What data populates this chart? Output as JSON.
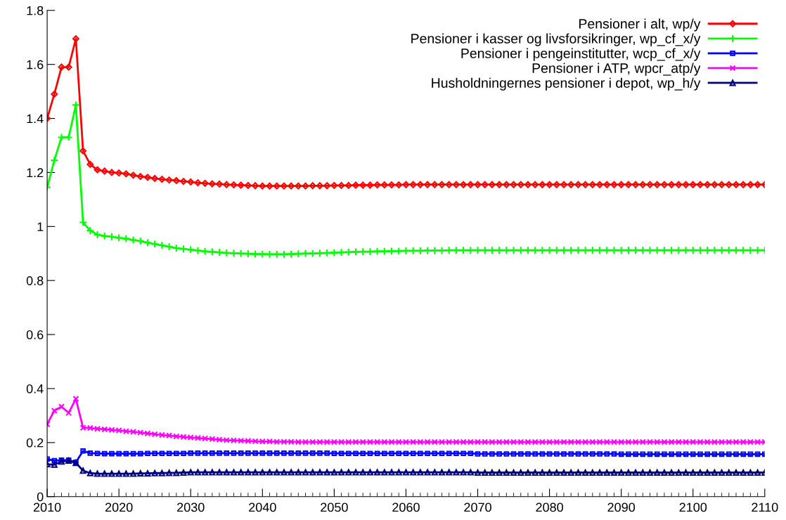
{
  "chart_data": {
    "type": "line",
    "x": [
      2010,
      2011,
      2012,
      2013,
      2014,
      2015,
      2016,
      2017,
      2018,
      2019,
      2020,
      2021,
      2022,
      2023,
      2024,
      2025,
      2026,
      2027,
      2028,
      2029,
      2030,
      2031,
      2032,
      2033,
      2034,
      2035,
      2036,
      2037,
      2038,
      2039,
      2040,
      2041,
      2042,
      2043,
      2044,
      2045,
      2046,
      2047,
      2048,
      2049,
      2050,
      2051,
      2052,
      2053,
      2054,
      2055,
      2056,
      2057,
      2058,
      2059,
      2060,
      2061,
      2062,
      2063,
      2064,
      2065,
      2066,
      2067,
      2068,
      2069,
      2070,
      2071,
      2072,
      2073,
      2074,
      2075,
      2076,
      2077,
      2078,
      2079,
      2080,
      2081,
      2082,
      2083,
      2084,
      2085,
      2086,
      2087,
      2088,
      2089,
      2090,
      2091,
      2092,
      2093,
      2094,
      2095,
      2096,
      2097,
      2098,
      2099,
      2100,
      2101,
      2102,
      2103,
      2104,
      2105,
      2106,
      2107,
      2108,
      2109,
      2110
    ],
    "series": [
      {
        "name": "Pensioner i alt, wp/y",
        "color": "#ff0000",
        "marker": "diamond",
        "values": [
          1.4,
          1.49,
          1.59,
          1.59,
          1.695,
          1.28,
          1.23,
          1.21,
          1.205,
          1.2,
          1.198,
          1.195,
          1.19,
          1.185,
          1.182,
          1.178,
          1.175,
          1.172,
          1.17,
          1.167,
          1.165,
          1.162,
          1.16,
          1.158,
          1.157,
          1.155,
          1.154,
          1.153,
          1.152,
          1.151,
          1.15,
          1.15,
          1.15,
          1.15,
          1.15,
          1.15,
          1.15,
          1.151,
          1.151,
          1.151,
          1.152,
          1.152,
          1.152,
          1.153,
          1.153,
          1.153,
          1.154,
          1.154,
          1.154,
          1.154,
          1.155,
          1.155,
          1.155,
          1.155,
          1.155,
          1.155,
          1.155,
          1.155,
          1.155,
          1.155,
          1.155,
          1.155,
          1.155,
          1.155,
          1.155,
          1.155,
          1.155,
          1.155,
          1.155,
          1.155,
          1.155,
          1.155,
          1.155,
          1.155,
          1.155,
          1.155,
          1.155,
          1.155,
          1.155,
          1.155,
          1.155,
          1.155,
          1.155,
          1.155,
          1.155,
          1.155,
          1.155,
          1.155,
          1.155,
          1.155,
          1.155,
          1.155,
          1.155,
          1.155,
          1.155,
          1.155,
          1.155,
          1.155,
          1.155,
          1.155,
          1.155
        ]
      },
      {
        "name": "Pensioner i kasser og livsforsikringer, wp_cf_x/y",
        "color": "#00ff00",
        "marker": "plus",
        "values": [
          1.145,
          1.245,
          1.33,
          1.33,
          1.45,
          1.015,
          0.985,
          0.97,
          0.965,
          0.962,
          0.958,
          0.955,
          0.95,
          0.946,
          0.94,
          0.935,
          0.93,
          0.925,
          0.92,
          0.917,
          0.914,
          0.911,
          0.908,
          0.906,
          0.904,
          0.902,
          0.901,
          0.9,
          0.899,
          0.898,
          0.898,
          0.897,
          0.897,
          0.897,
          0.898,
          0.899,
          0.9,
          0.9,
          0.901,
          0.902,
          0.903,
          0.904,
          0.905,
          0.906,
          0.907,
          0.907,
          0.908,
          0.908,
          0.909,
          0.909,
          0.91,
          0.91,
          0.91,
          0.911,
          0.911,
          0.911,
          0.912,
          0.912,
          0.912,
          0.912,
          0.912,
          0.912,
          0.912,
          0.912,
          0.912,
          0.912,
          0.912,
          0.912,
          0.912,
          0.912,
          0.912,
          0.912,
          0.912,
          0.912,
          0.912,
          0.912,
          0.912,
          0.912,
          0.912,
          0.912,
          0.912,
          0.912,
          0.912,
          0.912,
          0.912,
          0.912,
          0.912,
          0.912,
          0.912,
          0.912,
          0.912,
          0.912,
          0.912,
          0.912,
          0.912,
          0.912,
          0.912,
          0.912,
          0.912,
          0.912,
          0.912
        ]
      },
      {
        "name": "Pensioner i pengeinstitutter, wcp_cf_x/y",
        "color": "#0000ff",
        "marker": "square",
        "values": [
          0.139,
          0.133,
          0.135,
          0.135,
          0.127,
          0.169,
          0.161,
          0.16,
          0.159,
          0.159,
          0.159,
          0.159,
          0.159,
          0.159,
          0.16,
          0.16,
          0.16,
          0.16,
          0.16,
          0.16,
          0.161,
          0.161,
          0.161,
          0.161,
          0.161,
          0.161,
          0.161,
          0.161,
          0.161,
          0.161,
          0.161,
          0.161,
          0.161,
          0.161,
          0.161,
          0.161,
          0.161,
          0.161,
          0.161,
          0.161,
          0.16,
          0.16,
          0.16,
          0.16,
          0.16,
          0.16,
          0.16,
          0.16,
          0.16,
          0.16,
          0.16,
          0.16,
          0.16,
          0.16,
          0.16,
          0.16,
          0.16,
          0.16,
          0.16,
          0.16,
          0.158,
          0.158,
          0.158,
          0.158,
          0.158,
          0.158,
          0.158,
          0.158,
          0.158,
          0.158,
          0.158,
          0.158,
          0.158,
          0.158,
          0.158,
          0.158,
          0.158,
          0.158,
          0.158,
          0.158,
          0.157,
          0.157,
          0.157,
          0.157,
          0.157,
          0.157,
          0.157,
          0.157,
          0.157,
          0.157,
          0.157,
          0.157,
          0.157,
          0.157,
          0.157,
          0.157,
          0.157,
          0.157,
          0.157,
          0.157,
          0.157
        ]
      },
      {
        "name": "Pensioner i ATP, wpcr_atp/y",
        "color": "#ff00ff",
        "marker": "cross",
        "values": [
          0.268,
          0.318,
          0.333,
          0.31,
          0.362,
          0.255,
          0.254,
          0.251,
          0.249,
          0.247,
          0.245,
          0.242,
          0.24,
          0.237,
          0.234,
          0.231,
          0.228,
          0.226,
          0.223,
          0.221,
          0.219,
          0.217,
          0.215,
          0.213,
          0.211,
          0.209,
          0.208,
          0.207,
          0.206,
          0.205,
          0.204,
          0.204,
          0.203,
          0.203,
          0.203,
          0.202,
          0.202,
          0.202,
          0.202,
          0.202,
          0.202,
          0.202,
          0.202,
          0.202,
          0.202,
          0.202,
          0.202,
          0.202,
          0.202,
          0.202,
          0.202,
          0.202,
          0.202,
          0.202,
          0.202,
          0.202,
          0.202,
          0.202,
          0.202,
          0.202,
          0.202,
          0.202,
          0.202,
          0.202,
          0.202,
          0.202,
          0.202,
          0.202,
          0.202,
          0.202,
          0.202,
          0.202,
          0.202,
          0.202,
          0.202,
          0.202,
          0.202,
          0.202,
          0.202,
          0.202,
          0.202,
          0.202,
          0.202,
          0.202,
          0.202,
          0.202,
          0.202,
          0.202,
          0.202,
          0.202,
          0.202,
          0.202,
          0.202,
          0.202,
          0.202,
          0.202,
          0.202,
          0.202,
          0.202,
          0.202,
          0.202
        ]
      },
      {
        "name": "Husholdningernes pensioner i depot, wp_h/y",
        "color": "#000080",
        "marker": "triangle",
        "values": [
          0.12,
          0.118,
          0.13,
          0.133,
          0.125,
          0.096,
          0.087,
          0.085,
          0.085,
          0.085,
          0.085,
          0.085,
          0.085,
          0.086,
          0.086,
          0.087,
          0.087,
          0.088,
          0.088,
          0.089,
          0.09,
          0.09,
          0.09,
          0.09,
          0.09,
          0.09,
          0.09,
          0.09,
          0.09,
          0.09,
          0.09,
          0.09,
          0.09,
          0.09,
          0.09,
          0.09,
          0.09,
          0.09,
          0.09,
          0.09,
          0.09,
          0.09,
          0.09,
          0.09,
          0.09,
          0.09,
          0.09,
          0.09,
          0.09,
          0.09,
          0.09,
          0.09,
          0.09,
          0.09,
          0.09,
          0.09,
          0.09,
          0.09,
          0.09,
          0.09,
          0.089,
          0.089,
          0.089,
          0.089,
          0.089,
          0.089,
          0.089,
          0.089,
          0.089,
          0.089,
          0.089,
          0.089,
          0.089,
          0.089,
          0.089,
          0.089,
          0.089,
          0.089,
          0.089,
          0.089,
          0.089,
          0.089,
          0.089,
          0.089,
          0.089,
          0.089,
          0.089,
          0.089,
          0.089,
          0.089,
          0.089,
          0.089,
          0.089,
          0.089,
          0.089,
          0.089,
          0.089,
          0.089,
          0.089,
          0.089,
          0.089
        ]
      }
    ],
    "xlim": [
      2010,
      2110
    ],
    "xticks": [
      2010,
      2020,
      2030,
      2040,
      2050,
      2060,
      2070,
      2080,
      2090,
      2100,
      2110
    ],
    "ylim": [
      0,
      1.8
    ],
    "yticks": [
      0,
      0.2,
      0.4,
      0.6,
      0.8,
      1,
      1.2,
      1.4,
      1.6,
      1.8
    ],
    "grid": false,
    "legend": "top right",
    "line_style": "solid"
  }
}
